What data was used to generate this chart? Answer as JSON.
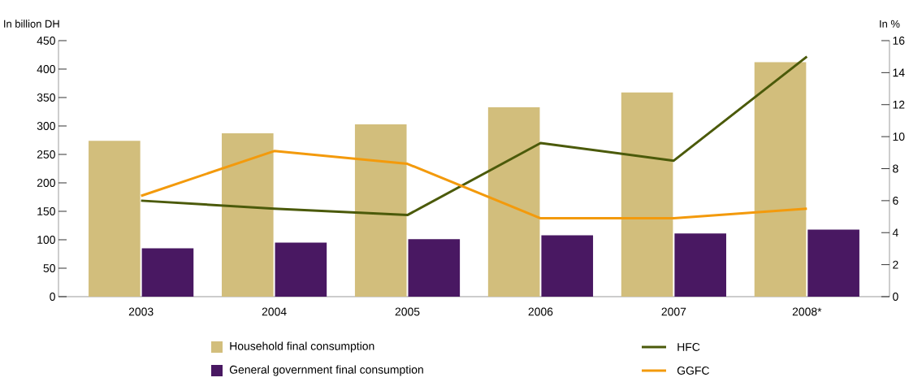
{
  "chart_data": {
    "type": "bar",
    "ylabel": "In billion DH",
    "y2label": "In %",
    "categories": [
      "2003",
      "2004",
      "2005",
      "2006",
      "2007",
      "2008*"
    ],
    "series": [
      {
        "name": "Household final consumption",
        "color": "#d2be7c",
        "values": [
          274,
          287,
          303,
          333,
          359,
          412
        ]
      },
      {
        "name": "General government final consumption",
        "color": "#491862",
        "values": [
          85,
          95,
          101,
          108,
          111,
          118
        ]
      },
      {
        "name": "HFC",
        "type": "line",
        "axis": "y2",
        "color": "#4b5a0a",
        "values": [
          6.0,
          5.5,
          5.1,
          9.6,
          8.5,
          15.0
        ]
      },
      {
        "name": "GGFC",
        "type": "line",
        "axis": "y2",
        "color": "#f39a0c",
        "values": [
          6.3,
          9.1,
          8.3,
          4.9,
          4.9,
          5.5
        ]
      }
    ],
    "ylim": [
      0,
      450
    ],
    "yticks": [
      0,
      50,
      100,
      150,
      200,
      250,
      300,
      350,
      400,
      450
    ],
    "y2lim": [
      0,
      16
    ],
    "y2ticks": [
      0,
      2,
      4,
      6,
      8,
      10,
      12,
      14,
      16
    ],
    "legend": "bottom",
    "grid": false
  }
}
